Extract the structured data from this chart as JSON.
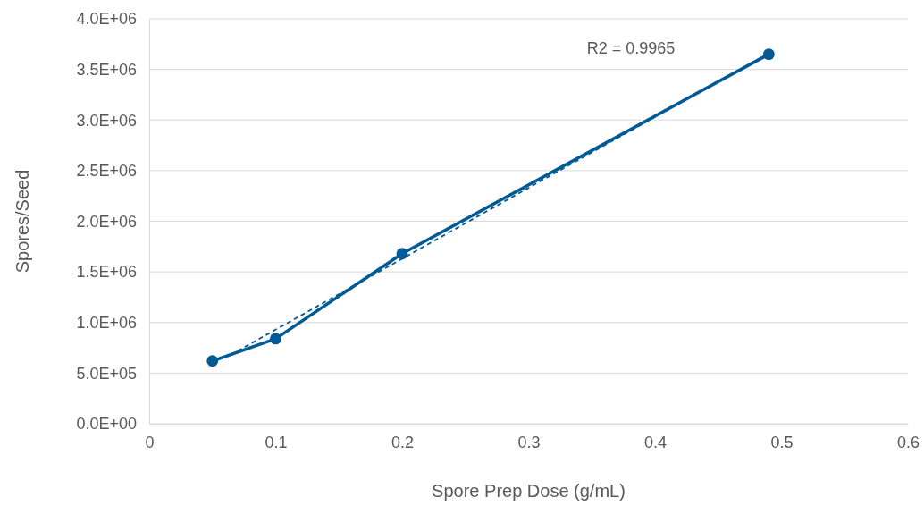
{
  "chart_data": {
    "type": "line",
    "xlabel": "Spore Prep Dose (g/mL)",
    "ylabel": "Spores/Seed",
    "xlim": [
      0,
      0.6
    ],
    "xticks": [
      0,
      0.1,
      0.2,
      0.3,
      0.4,
      0.5,
      0.6
    ],
    "ylim": [
      0,
      4000000
    ],
    "yticks": [
      {
        "value": 0,
        "label": "0.0E+00"
      },
      {
        "value": 500000,
        "label": "5.0E+05"
      },
      {
        "value": 1000000,
        "label": "1.0E+06"
      },
      {
        "value": 1500000,
        "label": "1.5E+06"
      },
      {
        "value": 2000000,
        "label": "2.0E+06"
      },
      {
        "value": 2500000,
        "label": "2.5E+06"
      },
      {
        "value": 3000000,
        "label": "3.0E+06"
      },
      {
        "value": 3500000,
        "label": "3.5E+06"
      },
      {
        "value": 4000000,
        "label": "4.0E+06"
      }
    ],
    "grid": "y",
    "series": [
      {
        "color": "#005a94",
        "x": [
          0.05,
          0.1,
          0.2,
          0.49
        ],
        "values": [
          620000,
          840000,
          1680000,
          3650000
        ],
        "marker": "circle",
        "line_style": "solid"
      },
      {
        "type": "line",
        "color": "#005a94",
        "x": [
          0.07,
          0.49
        ],
        "values": [
          720000,
          3660000
        ],
        "marker": "none",
        "line_style": "dashed"
      }
    ],
    "annotations": [
      "R2 = 0.9965"
    ]
  }
}
